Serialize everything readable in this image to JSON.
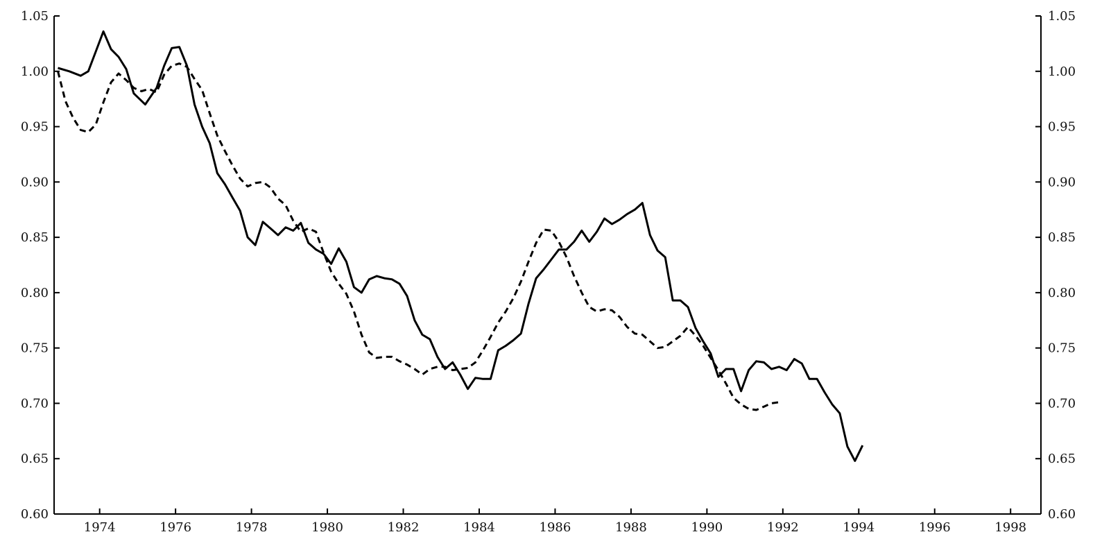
{
  "chart_data": {
    "type": "line",
    "title": "",
    "xlabel": "",
    "ylabel": "",
    "xlim": [
      1972.8,
      1998.8
    ],
    "ylim": [
      0.6,
      1.05
    ],
    "grid": false,
    "legend": "none",
    "x_ticks": [
      1974,
      1976,
      1978,
      1980,
      1982,
      1984,
      1986,
      1988,
      1990,
      1992,
      1994,
      1996,
      1998
    ],
    "x_tick_labels": [
      "1974",
      "1976",
      "1978",
      "1980",
      "1982",
      "1984",
      "1986",
      "1988",
      "1990",
      "1992",
      "1994",
      "1996",
      "1998"
    ],
    "y_ticks": [
      0.6,
      0.65,
      0.7,
      0.75,
      0.8,
      0.85,
      0.9,
      0.95,
      1.0,
      1.05
    ],
    "y_tick_labels": [
      "0.60",
      "0.65",
      "0.70",
      "0.75",
      "0.80",
      "0.85",
      "0.90",
      "0.95",
      "1.00",
      "1.05"
    ],
    "series": [
      {
        "style": "solid",
        "color": "#000000",
        "points": [
          [
            1972.9,
            1.003
          ],
          [
            1973.2,
            1.0
          ],
          [
            1973.5,
            0.996
          ],
          [
            1973.7,
            1.0
          ],
          [
            1973.9,
            1.018
          ],
          [
            1974.1,
            1.036
          ],
          [
            1974.3,
            1.02
          ],
          [
            1974.5,
            1.013
          ],
          [
            1974.7,
            1.002
          ],
          [
            1974.9,
            0.98
          ],
          [
            1975.2,
            0.97
          ],
          [
            1975.5,
            0.985
          ],
          [
            1975.7,
            1.005
          ],
          [
            1975.9,
            1.021
          ],
          [
            1976.1,
            1.022
          ],
          [
            1976.3,
            1.005
          ],
          [
            1976.5,
            0.97
          ],
          [
            1976.7,
            0.95
          ],
          [
            1976.9,
            0.935
          ],
          [
            1977.1,
            0.908
          ],
          [
            1977.3,
            0.898
          ],
          [
            1977.5,
            0.886
          ],
          [
            1977.7,
            0.874
          ],
          [
            1977.9,
            0.85
          ],
          [
            1978.1,
            0.843
          ],
          [
            1978.3,
            0.864
          ],
          [
            1978.5,
            0.858
          ],
          [
            1978.7,
            0.852
          ],
          [
            1978.9,
            0.859
          ],
          [
            1979.1,
            0.856
          ],
          [
            1979.3,
            0.863
          ],
          [
            1979.5,
            0.845
          ],
          [
            1979.7,
            0.839
          ],
          [
            1979.9,
            0.835
          ],
          [
            1980.1,
            0.826
          ],
          [
            1980.3,
            0.84
          ],
          [
            1980.5,
            0.828
          ],
          [
            1980.7,
            0.805
          ],
          [
            1980.9,
            0.8
          ],
          [
            1981.1,
            0.812
          ],
          [
            1981.3,
            0.815
          ],
          [
            1981.5,
            0.813
          ],
          [
            1981.7,
            0.812
          ],
          [
            1981.9,
            0.808
          ],
          [
            1982.1,
            0.797
          ],
          [
            1982.3,
            0.775
          ],
          [
            1982.5,
            0.762
          ],
          [
            1982.7,
            0.758
          ],
          [
            1982.9,
            0.742
          ],
          [
            1983.1,
            0.731
          ],
          [
            1983.3,
            0.737
          ],
          [
            1983.5,
            0.726
          ],
          [
            1983.7,
            0.713
          ],
          [
            1983.9,
            0.723
          ],
          [
            1984.1,
            0.722
          ],
          [
            1984.3,
            0.722
          ],
          [
            1984.5,
            0.748
          ],
          [
            1984.7,
            0.752
          ],
          [
            1984.9,
            0.757
          ],
          [
            1985.1,
            0.763
          ],
          [
            1985.3,
            0.79
          ],
          [
            1985.5,
            0.813
          ],
          [
            1985.7,
            0.821
          ],
          [
            1985.9,
            0.83
          ],
          [
            1986.1,
            0.839
          ],
          [
            1986.3,
            0.839
          ],
          [
            1986.5,
            0.846
          ],
          [
            1986.7,
            0.856
          ],
          [
            1986.9,
            0.846
          ],
          [
            1987.1,
            0.855
          ],
          [
            1987.3,
            0.867
          ],
          [
            1987.5,
            0.862
          ],
          [
            1987.7,
            0.866
          ],
          [
            1987.9,
            0.871
          ],
          [
            1988.1,
            0.875
          ],
          [
            1988.3,
            0.881
          ],
          [
            1988.5,
            0.852
          ],
          [
            1988.7,
            0.838
          ],
          [
            1988.9,
            0.832
          ],
          [
            1989.1,
            0.793
          ],
          [
            1989.3,
            0.793
          ],
          [
            1989.5,
            0.787
          ],
          [
            1989.7,
            0.768
          ],
          [
            1989.9,
            0.756
          ],
          [
            1990.1,
            0.745
          ],
          [
            1990.3,
            0.724
          ],
          [
            1990.5,
            0.731
          ],
          [
            1990.7,
            0.731
          ],
          [
            1990.9,
            0.711
          ],
          [
            1991.1,
            0.73
          ],
          [
            1991.3,
            0.738
          ],
          [
            1991.5,
            0.737
          ],
          [
            1991.7,
            0.731
          ],
          [
            1991.9,
            0.733
          ],
          [
            1992.1,
            0.73
          ],
          [
            1992.3,
            0.74
          ],
          [
            1992.5,
            0.736
          ],
          [
            1992.7,
            0.722
          ],
          [
            1992.9,
            0.722
          ],
          [
            1993.1,
            0.71
          ],
          [
            1993.3,
            0.699
          ],
          [
            1993.5,
            0.691
          ],
          [
            1993.7,
            0.661
          ],
          [
            1993.9,
            0.648
          ],
          [
            1994.1,
            0.662
          ]
        ]
      },
      {
        "style": "dashed",
        "color": "#000000",
        "points": [
          [
            1972.9,
            1.0
          ],
          [
            1973.1,
            0.973
          ],
          [
            1973.3,
            0.958
          ],
          [
            1973.5,
            0.947
          ],
          [
            1973.7,
            0.945
          ],
          [
            1973.9,
            0.952
          ],
          [
            1974.1,
            0.972
          ],
          [
            1974.3,
            0.99
          ],
          [
            1974.5,
            0.998
          ],
          [
            1974.7,
            0.992
          ],
          [
            1974.9,
            0.985
          ],
          [
            1975.1,
            0.982
          ],
          [
            1975.3,
            0.984
          ],
          [
            1975.5,
            0.981
          ],
          [
            1975.7,
            0.997
          ],
          [
            1975.9,
            1.005
          ],
          [
            1976.1,
            1.007
          ],
          [
            1976.3,
            1.004
          ],
          [
            1976.5,
            0.993
          ],
          [
            1976.7,
            0.983
          ],
          [
            1976.9,
            0.962
          ],
          [
            1977.1,
            0.942
          ],
          [
            1977.3,
            0.928
          ],
          [
            1977.5,
            0.915
          ],
          [
            1977.7,
            0.903
          ],
          [
            1977.9,
            0.896
          ],
          [
            1978.1,
            0.899
          ],
          [
            1978.3,
            0.9
          ],
          [
            1978.5,
            0.895
          ],
          [
            1978.7,
            0.885
          ],
          [
            1978.9,
            0.879
          ],
          [
            1979.1,
            0.865
          ],
          [
            1979.3,
            0.855
          ],
          [
            1979.5,
            0.858
          ],
          [
            1979.7,
            0.855
          ],
          [
            1979.9,
            0.836
          ],
          [
            1980.1,
            0.819
          ],
          [
            1980.3,
            0.808
          ],
          [
            1980.5,
            0.799
          ],
          [
            1980.7,
            0.783
          ],
          [
            1980.9,
            0.762
          ],
          [
            1981.1,
            0.746
          ],
          [
            1981.3,
            0.741
          ],
          [
            1981.5,
            0.742
          ],
          [
            1981.7,
            0.742
          ],
          [
            1981.9,
            0.738
          ],
          [
            1982.1,
            0.735
          ],
          [
            1982.3,
            0.731
          ],
          [
            1982.5,
            0.726
          ],
          [
            1982.7,
            0.731
          ],
          [
            1982.9,
            0.733
          ],
          [
            1983.1,
            0.733
          ],
          [
            1983.3,
            0.73
          ],
          [
            1983.5,
            0.731
          ],
          [
            1983.7,
            0.732
          ],
          [
            1983.9,
            0.737
          ],
          [
            1984.1,
            0.748
          ],
          [
            1984.3,
            0.76
          ],
          [
            1984.5,
            0.773
          ],
          [
            1984.7,
            0.783
          ],
          [
            1984.9,
            0.795
          ],
          [
            1985.1,
            0.81
          ],
          [
            1985.3,
            0.828
          ],
          [
            1985.5,
            0.845
          ],
          [
            1985.7,
            0.857
          ],
          [
            1985.9,
            0.856
          ],
          [
            1986.1,
            0.846
          ],
          [
            1986.3,
            0.832
          ],
          [
            1986.5,
            0.815
          ],
          [
            1986.7,
            0.8
          ],
          [
            1986.9,
            0.787
          ],
          [
            1987.1,
            0.783
          ],
          [
            1987.3,
            0.785
          ],
          [
            1987.5,
            0.784
          ],
          [
            1987.7,
            0.778
          ],
          [
            1987.9,
            0.769
          ],
          [
            1988.1,
            0.763
          ],
          [
            1988.3,
            0.762
          ],
          [
            1988.5,
            0.756
          ],
          [
            1988.7,
            0.75
          ],
          [
            1988.9,
            0.751
          ],
          [
            1989.1,
            0.756
          ],
          [
            1989.3,
            0.761
          ],
          [
            1989.5,
            0.769
          ],
          [
            1989.7,
            0.761
          ],
          [
            1989.9,
            0.752
          ],
          [
            1990.1,
            0.741
          ],
          [
            1990.3,
            0.73
          ],
          [
            1990.5,
            0.718
          ],
          [
            1990.7,
            0.705
          ],
          [
            1990.9,
            0.699
          ],
          [
            1991.1,
            0.695
          ],
          [
            1991.3,
            0.694
          ],
          [
            1991.5,
            0.697
          ],
          [
            1991.7,
            0.7
          ],
          [
            1991.9,
            0.701
          ]
        ]
      }
    ]
  }
}
